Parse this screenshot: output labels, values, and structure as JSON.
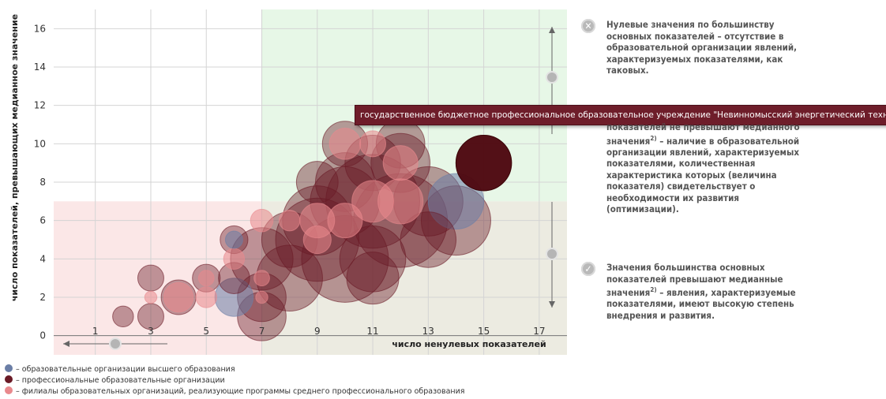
{
  "chart_data": {
    "type": "scatter",
    "subtype": "bubble",
    "xlabel": "число ненулевых показателей",
    "ylabel": "число показателей, превышающих медианное значение",
    "xlim": [
      -0.5,
      18
    ],
    "ylim": [
      -1,
      17
    ],
    "x_ticks": [
      1,
      3,
      5,
      7,
      9,
      11,
      13,
      15,
      17
    ],
    "y_ticks": [
      0,
      2,
      4,
      6,
      8,
      10,
      12,
      14,
      16
    ],
    "grid": true,
    "regions": [
      {
        "name": "top-right",
        "x": [
          7,
          18
        ],
        "y": [
          7,
          17
        ],
        "color": "#e7f7e7"
      },
      {
        "name": "bottom-left",
        "x": [
          -0.5,
          7
        ],
        "y": [
          -1,
          7
        ],
        "color": "#fbe7e7"
      },
      {
        "name": "bottom-right",
        "x": [
          7,
          18
        ],
        "y": [
          -1,
          7
        ],
        "color": "#ecebe1"
      }
    ],
    "series": [
      {
        "color": "#6b7ea6",
        "points": [
          {
            "x": 6,
            "y": 2,
            "size": 1.1
          },
          {
            "x": 14,
            "y": 7,
            "size": 1.6
          },
          {
            "x": 6,
            "y": 5,
            "size": 0.5
          }
        ]
      },
      {
        "color": "#6a1a26",
        "points": [
          {
            "x": 2,
            "y": 1,
            "size": 0.6
          },
          {
            "x": 3,
            "y": 1,
            "size": 0.75
          },
          {
            "x": 3,
            "y": 3,
            "size": 0.75
          },
          {
            "x": 4,
            "y": 2,
            "size": 1.0
          },
          {
            "x": 5,
            "y": 3,
            "size": 0.8
          },
          {
            "x": 6,
            "y": 3,
            "size": 0.9
          },
          {
            "x": 6,
            "y": 5,
            "size": 0.8
          },
          {
            "x": 7,
            "y": 2,
            "size": 1.4
          },
          {
            "x": 7,
            "y": 4,
            "size": 1.8
          },
          {
            "x": 7,
            "y": 1,
            "size": 1.4
          },
          {
            "x": 8,
            "y": 5,
            "size": 1.6
          },
          {
            "x": 8,
            "y": 3,
            "size": 1.9
          },
          {
            "x": 9,
            "y": 5,
            "size": 2.4
          },
          {
            "x": 9,
            "y": 6,
            "size": 2.0
          },
          {
            "x": 9,
            "y": 8,
            "size": 1.2
          },
          {
            "x": 10,
            "y": 8,
            "size": 1.7
          },
          {
            "x": 10,
            "y": 4,
            "size": 2.5
          },
          {
            "x": 10,
            "y": 7,
            "size": 2.0
          },
          {
            "x": 11,
            "y": 7,
            "size": 2.7
          },
          {
            "x": 11,
            "y": 4,
            "size": 1.9
          },
          {
            "x": 11,
            "y": 9,
            "size": 1.6
          },
          {
            "x": 11,
            "y": 3,
            "size": 1.5
          },
          {
            "x": 12,
            "y": 6,
            "size": 2.7
          },
          {
            "x": 12,
            "y": 9,
            "size": 1.7
          },
          {
            "x": 13,
            "y": 7,
            "size": 2.0
          },
          {
            "x": 14,
            "y": 6,
            "size": 2.0
          },
          {
            "x": 15,
            "y": 9,
            "size": 1.6
          },
          {
            "x": 10,
            "y": 10,
            "size": 1.3
          },
          {
            "x": 12,
            "y": 10,
            "size": 1.4
          },
          {
            "x": 13,
            "y": 5,
            "size": 1.6
          }
        ]
      },
      {
        "color": "#e9898d",
        "points": [
          {
            "x": 3,
            "y": 2,
            "size": 0.35
          },
          {
            "x": 4,
            "y": 2,
            "size": 0.85
          },
          {
            "x": 5,
            "y": 3,
            "size": 0.45
          },
          {
            "x": 5,
            "y": 2,
            "size": 0.6
          },
          {
            "x": 6,
            "y": 4,
            "size": 0.6
          },
          {
            "x": 7,
            "y": 6,
            "size": 0.65
          },
          {
            "x": 7,
            "y": 3,
            "size": 0.45
          },
          {
            "x": 7,
            "y": 2,
            "size": 0.35
          },
          {
            "x": 8,
            "y": 6,
            "size": 0.6
          },
          {
            "x": 9,
            "y": 6,
            "size": 1.0
          },
          {
            "x": 9,
            "y": 5,
            "size": 0.8
          },
          {
            "x": 10,
            "y": 6,
            "size": 1.0
          },
          {
            "x": 10,
            "y": 10,
            "size": 0.9
          },
          {
            "x": 11,
            "y": 7,
            "size": 1.2
          },
          {
            "x": 12,
            "y": 9,
            "size": 1.0
          },
          {
            "x": 12,
            "y": 7,
            "size": 1.3
          },
          {
            "x": 11,
            "y": 10,
            "size": 0.75
          }
        ]
      }
    ],
    "tooltip": "государственное бюджетное профессиональное образовательное учреждение \"Невинномысский энергетический техникум\"",
    "legend": [
      {
        "color": "#6b7ea6",
        "label": "– образовательные организации высшего образования"
      },
      {
        "color": "#6a1a26",
        "label": "– профессиональные образовательные организации"
      },
      {
        "color": "#e9898d",
        "label": "– филиалы образовательных организаций, реализующие программы среднего профессионального образования"
      }
    ]
  },
  "side_notes": [
    {
      "icon": "x-circle-icon",
      "text_before": "Нулевые значения по большинству основных показателей – отсутствие в образовательной организации явлений, характеризуемых показателями, как таковых.",
      "sup": "",
      "text_after": ""
    },
    {
      "icon": "info-circle-icon",
      "text_before": "показателей не превышают медианного значения",
      "sup": "2)",
      "text_after": " – наличие в образовательной организации явлений, характеризуемых показателями, количественная характеристика которых (величина показателя) свидетельствует о необходимости их развития (оптимизации)."
    },
    {
      "icon": "check-circle-icon",
      "text_before": "Значения большинства основных показателей превышают медианные значения",
      "sup": "2)",
      "text_after": " – явления, характеризуемые показателями, имеют высокую степень внедрения и развития."
    }
  ]
}
